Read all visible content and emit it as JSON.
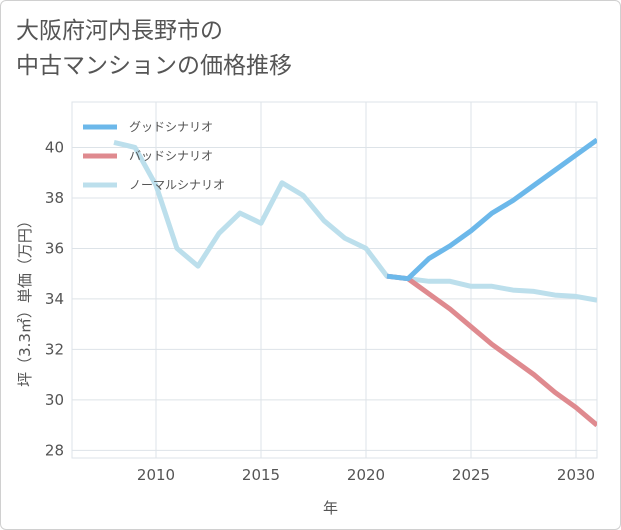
{
  "title_lines": [
    "大阪府河内長野市の",
    "中古マンションの価格推移"
  ],
  "colors": {
    "good": "#6cb8ea",
    "bad": "#df8a8f",
    "normal": "#bcdfec",
    "grid": "#dde3e8",
    "text": "#555555"
  },
  "chart_data": {
    "type": "line",
    "title": "大阪府河内長野市の中古マンションの価格推移",
    "xlabel": "年",
    "ylabel": "坪（3.3㎡）単価（万円）",
    "xlim": [
      2006,
      2031
    ],
    "ylim": [
      27.7,
      41.8
    ],
    "x_ticks": [
      2010,
      2015,
      2020,
      2025,
      2030
    ],
    "y_ticks": [
      28,
      30,
      32,
      34,
      36,
      38,
      40
    ],
    "legend_position": "top-left",
    "series": [
      {
        "name": "グッドシナリオ",
        "color_key": "good",
        "x": [
          2021,
          2022,
          2023,
          2024,
          2025,
          2026,
          2027,
          2028,
          2029,
          2030,
          2031
        ],
        "y": [
          34.9,
          34.8,
          35.6,
          36.1,
          36.7,
          37.4,
          37.9,
          38.5,
          39.1,
          39.7,
          40.3
        ]
      },
      {
        "name": "バッドシナリオ",
        "color_key": "bad",
        "x": [
          2021,
          2022,
          2023,
          2024,
          2025,
          2026,
          2027,
          2028,
          2029,
          2030,
          2031
        ],
        "y": [
          34.9,
          34.8,
          34.2,
          33.6,
          32.9,
          32.2,
          31.6,
          31.0,
          30.3,
          29.7,
          29.0
        ]
      },
      {
        "name": "ノーマルシナリオ",
        "color_key": "normal",
        "x": [
          2008,
          2009,
          2010,
          2011,
          2012,
          2013,
          2014,
          2015,
          2016,
          2017,
          2018,
          2019,
          2020,
          2021,
          2022,
          2023,
          2024,
          2025,
          2026,
          2027,
          2028,
          2029,
          2030,
          2031
        ],
        "y": [
          40.2,
          40.0,
          38.5,
          36.0,
          35.3,
          36.6,
          37.4,
          37.0,
          38.6,
          38.1,
          37.1,
          36.4,
          36.0,
          34.9,
          34.8,
          34.7,
          34.7,
          34.5,
          34.5,
          34.35,
          34.3,
          34.15,
          34.1,
          33.95
        ]
      }
    ]
  }
}
